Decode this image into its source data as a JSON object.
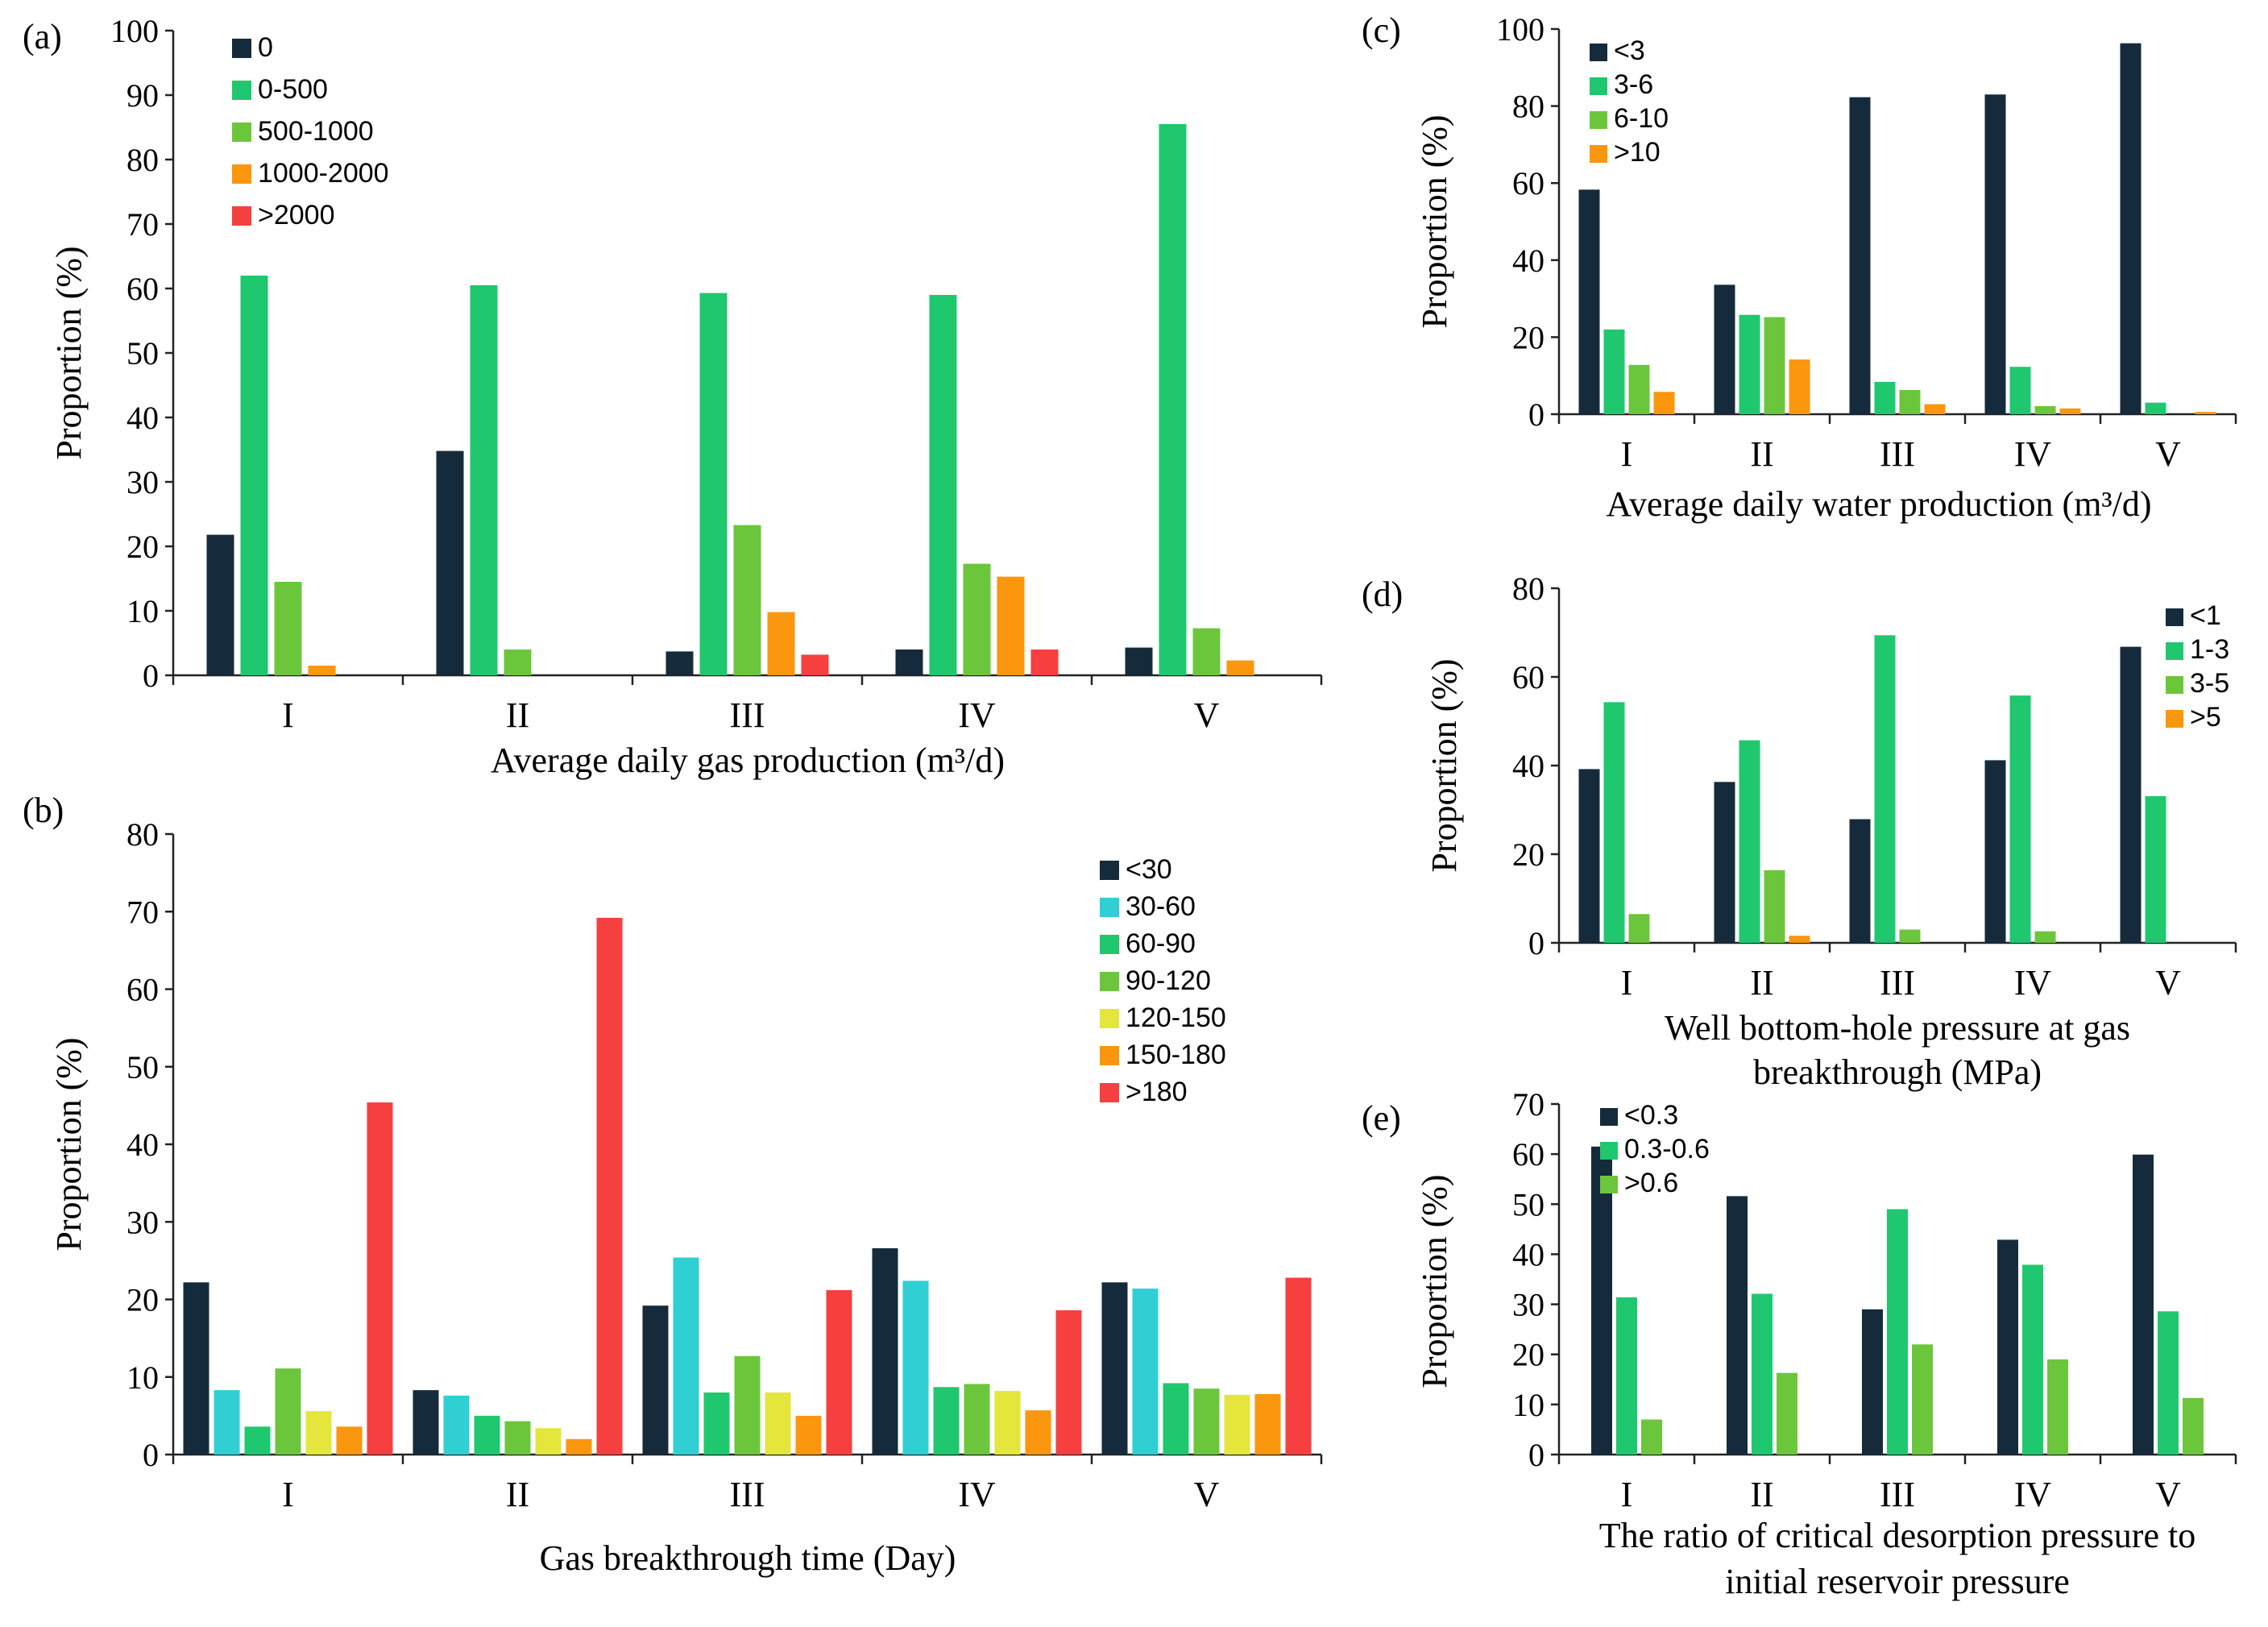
{
  "colors": {
    "navy": "#152b3c",
    "green": "#1fc86e",
    "lightgreen": "#6cc63c",
    "orange": "#fb960f",
    "red": "#f63f3f",
    "cyan": "#2fcfd3",
    "yellow": "#e4e63c"
  },
  "chart_data": [
    {
      "id": "a",
      "panel_label": "(a)",
      "type": "bar",
      "xlabel": [
        "Average daily gas production (m³/d)"
      ],
      "ylabel": "Proportion (%)",
      "ylim": [
        0,
        100
      ],
      "yticks": [
        0,
        10,
        20,
        30,
        40,
        50,
        60,
        70,
        80,
        90,
        100
      ],
      "categories": [
        "I",
        "II",
        "III",
        "IV",
        "V"
      ],
      "legend_position": "top-left",
      "series": [
        {
          "name": "0",
          "color": "#152b3c",
          "values": [
            21.8,
            34.8,
            3.7,
            4.0,
            4.3
          ]
        },
        {
          "name": "0-500",
          "color": "#1fc86e",
          "values": [
            62.0,
            60.5,
            59.3,
            59.0,
            85.5
          ]
        },
        {
          "name": "500-1000",
          "color": "#6cc63c",
          "values": [
            14.5,
            4.0,
            23.3,
            17.3,
            7.3
          ]
        },
        {
          "name": "1000-2000",
          "color": "#fb960f",
          "values": [
            1.5,
            0,
            9.8,
            15.3,
            2.3
          ]
        },
        {
          "name": ">2000",
          "color": "#f63f3f",
          "values": [
            0,
            0,
            3.2,
            4.0,
            0
          ]
        }
      ]
    },
    {
      "id": "b",
      "panel_label": "(b)",
      "type": "bar",
      "xlabel": [
        "Gas breakthrough time (Day)"
      ],
      "ylabel": "Proportion (%)",
      "ylim": [
        0,
        80
      ],
      "yticks": [
        0,
        10,
        20,
        30,
        40,
        50,
        60,
        70,
        80
      ],
      "categories": [
        "I",
        "II",
        "III",
        "IV",
        "V"
      ],
      "legend_position": "top-right",
      "series": [
        {
          "name": "<30",
          "color": "#152b3c",
          "values": [
            22.2,
            8.3,
            19.2,
            26.6,
            22.2
          ]
        },
        {
          "name": "30-60",
          "color": "#2fcfd3",
          "values": [
            8.3,
            7.6,
            25.4,
            22.4,
            21.4
          ]
        },
        {
          "name": "60-90",
          "color": "#1fc86e",
          "values": [
            3.6,
            5.0,
            8.0,
            8.7,
            9.2
          ]
        },
        {
          "name": "90-120",
          "color": "#6cc63c",
          "values": [
            11.1,
            4.3,
            12.7,
            9.1,
            8.5
          ]
        },
        {
          "name": "120-150",
          "color": "#e4e63c",
          "values": [
            5.6,
            3.4,
            8.0,
            8.2,
            7.7
          ]
        },
        {
          "name": "150-180",
          "color": "#fb960f",
          "values": [
            3.6,
            2.0,
            5.0,
            5.7,
            7.8
          ]
        },
        {
          "name": ">180",
          "color": "#f63f3f",
          "values": [
            45.4,
            69.2,
            21.2,
            18.6,
            22.8
          ]
        }
      ]
    },
    {
      "id": "c",
      "panel_label": "(c)",
      "type": "bar",
      "xlabel": [
        "Average daily water production (m³/d)"
      ],
      "ylabel": "Proportion  (%)",
      "ylim": [
        0,
        100
      ],
      "yticks": [
        0,
        20,
        40,
        60,
        80,
        100
      ],
      "categories": [
        "I",
        "II",
        "III",
        "IV",
        "V"
      ],
      "legend_position": "top-left",
      "series": [
        {
          "name": "<3",
          "color": "#152b3c",
          "values": [
            58.3,
            33.6,
            82.3,
            83.0,
            96.3
          ]
        },
        {
          "name": "3-6",
          "color": "#1fc86e",
          "values": [
            22.0,
            25.8,
            8.4,
            12.3,
            3.0
          ]
        },
        {
          "name": "6-10",
          "color": "#6cc63c",
          "values": [
            12.8,
            25.2,
            6.3,
            2.1,
            0
          ]
        },
        {
          "name": ">10",
          "color": "#fb960f",
          "values": [
            5.8,
            14.2,
            2.6,
            1.5,
            0.6
          ]
        }
      ]
    },
    {
      "id": "d",
      "panel_label": "(d)",
      "type": "bar",
      "xlabel": [
        "Well bottom-hole pressure at gas",
        "breakthrough (MPa)"
      ],
      "ylabel": "Proportion (%)",
      "ylim": [
        0,
        80
      ],
      "yticks": [
        0,
        20,
        40,
        60,
        80
      ],
      "categories": [
        "I",
        "II",
        "III",
        "IV",
        "V"
      ],
      "legend_position": "top-right",
      "series": [
        {
          "name": "<1",
          "color": "#152b3c",
          "values": [
            39.2,
            36.3,
            27.9,
            41.2,
            66.8
          ]
        },
        {
          "name": "1-3",
          "color": "#1fc86e",
          "values": [
            54.3,
            45.7,
            69.4,
            55.8,
            33.1
          ]
        },
        {
          "name": "3-5",
          "color": "#6cc63c",
          "values": [
            6.5,
            16.4,
            3.0,
            2.6,
            0
          ]
        },
        {
          "name": ">5",
          "color": "#fb960f",
          "values": [
            0,
            1.6,
            0,
            0,
            0
          ]
        }
      ]
    },
    {
      "id": "e",
      "panel_label": "(e)",
      "type": "bar",
      "xlabel": [
        "The ratio of critical desorption pressure to",
        "initial reservoir pressure"
      ],
      "ylabel": "Proportion (%)",
      "ylim": [
        0,
        70
      ],
      "yticks": [
        0,
        10,
        20,
        30,
        40,
        50,
        60,
        70
      ],
      "categories": [
        "I",
        "II",
        "III",
        "IV",
        "V"
      ],
      "legend_position": "top-left",
      "series": [
        {
          "name": "<0.3",
          "color": "#152b3c",
          "values": [
            61.5,
            51.6,
            29.0,
            42.9,
            59.9
          ]
        },
        {
          "name": "0.3-0.6",
          "color": "#1fc86e",
          "values": [
            31.4,
            32.1,
            49.0,
            37.9,
            28.6
          ]
        },
        {
          "name": ">0.6",
          "color": "#6cc63c",
          "values": [
            7.0,
            16.3,
            22.0,
            19.0,
            11.3
          ]
        }
      ]
    }
  ]
}
